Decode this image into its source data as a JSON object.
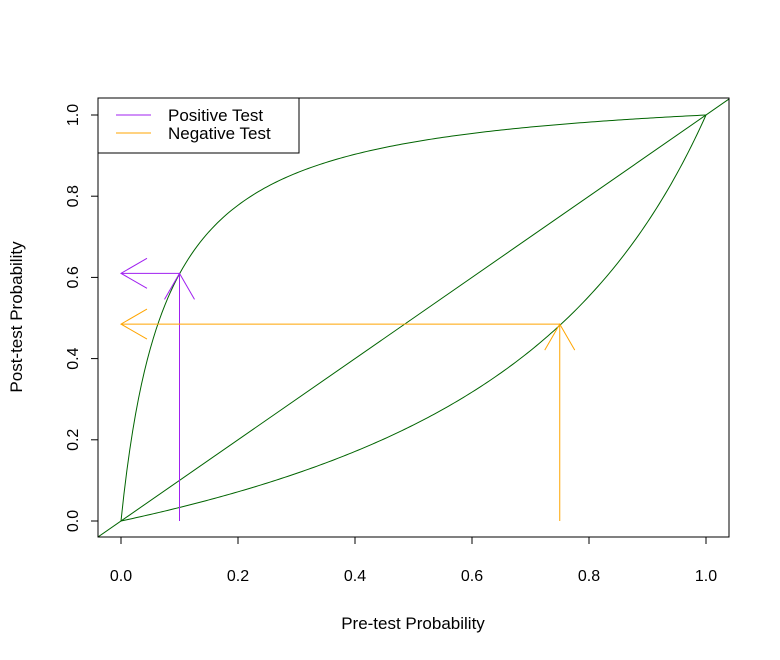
{
  "chart_data": {
    "type": "line",
    "title": "",
    "xlabel": "Pre-test Probability",
    "ylabel": "Post-test Probability",
    "xlim": [
      0,
      1
    ],
    "ylim": [
      0,
      1
    ],
    "x_ticks": [
      "0.0",
      "0.2",
      "0.4",
      "0.6",
      "0.8",
      "1.0"
    ],
    "y_ticks": [
      "0.0",
      "0.2",
      "0.4",
      "0.6",
      "0.8",
      "1.0"
    ],
    "grid": false,
    "legend_position": "top-left",
    "curves": {
      "positive_lr": 14,
      "negative_lr": 0.31,
      "color": "#006400"
    },
    "diagonal": {
      "x": [
        0,
        1
      ],
      "y": [
        0,
        1
      ],
      "color": "#006400"
    },
    "series": [
      {
        "name": "Positive Test",
        "color": "#a020f0",
        "pretest": 0.1,
        "posttest": 0.61
      },
      {
        "name": "Negative Test",
        "color": "#ffa500",
        "pretest": 0.75,
        "posttest": 0.485
      }
    ]
  }
}
